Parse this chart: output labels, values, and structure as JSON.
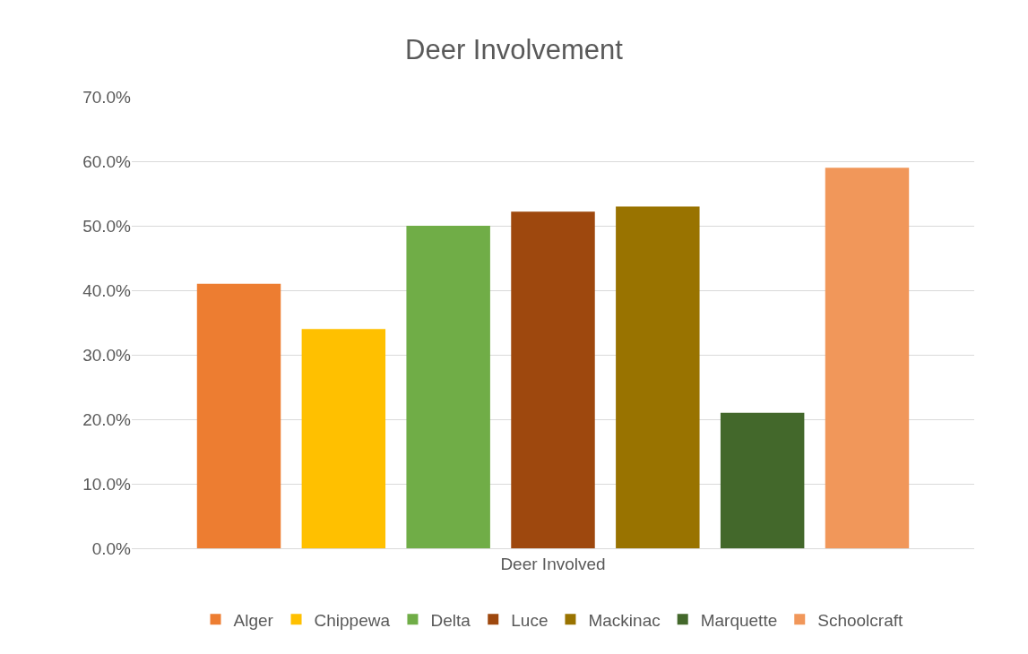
{
  "chart_data": {
    "type": "bar",
    "title": "Deer Involvement",
    "categories": [
      "Deer Involved"
    ],
    "series": [
      {
        "name": "Alger",
        "color": "#ed7d31",
        "values": [
          41.0
        ]
      },
      {
        "name": "Chippewa",
        "color": "#ffc000",
        "values": [
          34.0
        ]
      },
      {
        "name": "Delta",
        "color": "#70ad47",
        "values": [
          50.0
        ]
      },
      {
        "name": "Luce",
        "color": "#9e480e",
        "values": [
          52.2
        ]
      },
      {
        "name": "Mackinac",
        "color": "#997300",
        "values": [
          53.0
        ]
      },
      {
        "name": "Marquette",
        "color": "#43682b",
        "values": [
          21.0
        ]
      },
      {
        "name": "Schoolcraft",
        "color": "#f1975a",
        "values": [
          59.0
        ]
      }
    ],
    "ylim": [
      0,
      70
    ],
    "yticks": [
      {
        "value": 0,
        "label": "0.0%"
      },
      {
        "value": 10,
        "label": "10.0%"
      },
      {
        "value": 20,
        "label": "20.0%"
      },
      {
        "value": 30,
        "label": "30.0%"
      },
      {
        "value": 40,
        "label": "40.0%"
      },
      {
        "value": 50,
        "label": "50.0%"
      },
      {
        "value": 60,
        "label": "60.0%"
      },
      {
        "value": 70,
        "label": "70.0%"
      }
    ],
    "grid": "y",
    "legend": "bottom"
  }
}
